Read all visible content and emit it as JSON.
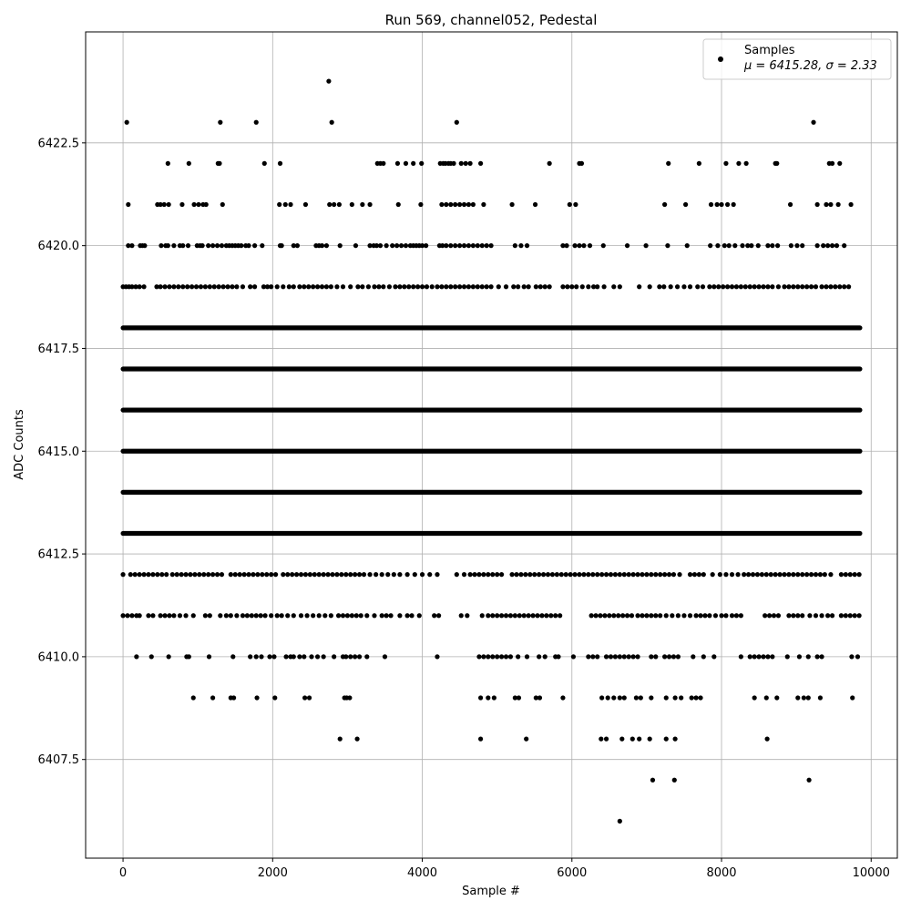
{
  "chart_data": {
    "type": "scatter",
    "title": "Run 569, channel052, Pedestal",
    "xlabel": "Sample #",
    "ylabel": "ADC Counts",
    "xlim": [
      -500,
      10350
    ],
    "ylim": [
      6405.1,
      6425.2
    ],
    "x_ticks": [
      0,
      2000,
      4000,
      6000,
      8000,
      10000
    ],
    "y_ticks": [
      6407.5,
      6410.0,
      6412.5,
      6415.0,
      6417.5,
      6420.0,
      6422.5
    ],
    "x_tick_labels": [
      "0",
      "2000",
      "4000",
      "6000",
      "8000",
      "10000"
    ],
    "y_tick_labels": [
      "6407.5",
      "6410.0",
      "6412.5",
      "6415.0",
      "6417.5",
      "6420.0",
      "6422.5"
    ],
    "grid": true,
    "legend": {
      "location": "upper right",
      "entries": [
        {
          "label": "Samples",
          "stats": "μ = 6415.28, σ = 2.33",
          "marker": "circle",
          "color": "#000000"
        }
      ]
    },
    "n_samples": 9850,
    "series": [
      {
        "name": "Samples",
        "color": "#000000",
        "marker": "circle",
        "dense_levels": [
          {
            "y": 6413,
            "x_range": [
              0,
              9850
            ]
          },
          {
            "y": 6414,
            "x_range": [
              0,
              9850
            ]
          },
          {
            "y": 6415,
            "x_range": [
              0,
              9850
            ]
          },
          {
            "y": 6416,
            "x_range": [
              0,
              9850
            ]
          },
          {
            "y": 6417,
            "x_range": [
              0,
              9850
            ]
          },
          {
            "y": 6418,
            "x_range": [
              0,
              9850
            ]
          }
        ],
        "sparse_points": [
          {
            "y": 6424,
            "x": [
              2750
            ]
          },
          {
            "y": 6423,
            "x": [
              50,
              1300,
              1780,
              2790,
              4460,
              9230
            ]
          },
          {
            "y": 6422,
            "x": [
              600,
              880,
              1270,
              1290,
              1890,
              2100,
              3400,
              3440,
              3480,
              3670,
              3780,
              3880,
              3990,
              4240,
              4280,
              4310,
              4350,
              4380,
              4420,
              4520,
              4580,
              4640,
              4780,
              5700,
              6100,
              6130,
              7290,
              7700,
              8060,
              8230,
              8330,
              8720,
              8740,
              9440,
              9480,
              9580
            ]
          },
          {
            "y": 6421,
            "x": [
              70,
              460,
              500,
              550,
              610,
              790,
              950,
              1010,
              1070,
              1110,
              1330,
              2090,
              2170,
              2240,
              2440,
              2760,
              2820,
              2890,
              3060,
              3200,
              3300,
              3680,
              3980,
              4260,
              4320,
              4380,
              4440,
              4500,
              4560,
              4620,
              4680,
              4820,
              5200,
              5510,
              5970,
              6050,
              7240,
              7520,
              7860,
              7940,
              8000,
              8080,
              8160,
              8920,
              9280,
              9400,
              9460,
              9560,
              9730
            ]
          },
          {
            "y": 6420,
            "x": [
              70,
              120,
              230,
              260,
              290,
              510,
              570,
              600,
              680,
              760,
              800,
              870,
              990,
              1030,
              1060,
              1140,
              1200,
              1260,
              1320,
              1380,
              1420,
              1460,
              1500,
              1540,
              1580,
              1640,
              1680,
              1760,
              1860,
              2100,
              2120,
              2280,
              2330,
              2580,
              2620,
              2660,
              2720,
              2900,
              3110,
              3300,
              3350,
              3390,
              3440,
              3520,
              3600,
              3660,
              3720,
              3780,
              3840,
              3880,
              3920,
              3960,
              4000,
              4050,
              4230,
              4270,
              4320,
              4380,
              4440,
              4500,
              4560,
              4620,
              4680,
              4740,
              4800,
              4860,
              4920,
              5240,
              5320,
              5400,
              5880,
              5930,
              6040,
              6100,
              6160,
              6240,
              6420,
              6740,
              6990,
              7280,
              7540,
              7850,
              7950,
              8040,
              8100,
              8180,
              8280,
              8350,
              8400,
              8490,
              8620,
              8680,
              8750,
              8930,
              9010,
              9080,
              9280,
              9360,
              9420,
              9480,
              9540,
              9640
            ]
          },
          {
            "y": 6419,
            "x": [
              0,
              40,
              80,
              120,
              170,
              220,
              280,
              450,
              500,
              560,
              620,
              680,
              740,
              800,
              860,
              920,
              980,
              1040,
              1100,
              1160,
              1220,
              1280,
              1340,
              1400,
              1460,
              1520,
              1600,
              1700,
              1760,
              1880,
              1930,
              1980,
              2060,
              2140,
              2220,
              2280,
              2360,
              2420,
              2480,
              2540,
              2600,
              2660,
              2720,
              2780,
              2860,
              2940,
              3040,
              3140,
              3200,
              3280,
              3360,
              3420,
              3480,
              3560,
              3640,
              3700,
              3760,
              3820,
              3880,
              3940,
              4000,
              4060,
              4130,
              4200,
              4260,
              4320,
              4380,
              4440,
              4500,
              4560,
              4620,
              4680,
              4740,
              4800,
              4860,
              4920,
              5020,
              5120,
              5220,
              5280,
              5360,
              5420,
              5520,
              5580,
              5640,
              5700,
              5880,
              5940,
              6000,
              6060,
              6140,
              6220,
              6290,
              6340,
              6430,
              6560,
              6640,
              6900,
              7040,
              7170,
              7230,
              7320,
              7410,
              7500,
              7580,
              7680,
              7750,
              7840,
              7900,
              7960,
              8020,
              8080,
              8140,
              8200,
              8260,
              8320,
              8380,
              8440,
              8500,
              8560,
              8620,
              8680,
              8760,
              8840,
              8900,
              8960,
              9020,
              9080,
              9140,
              9200,
              9260,
              9340,
              9400,
              9460,
              9520,
              9580,
              9640,
              9700
            ]
          },
          {
            "y": 6412,
            "x": [
              0,
              100,
              160,
              220,
              280,
              340,
              400,
              460,
              520,
              580,
              660,
              720,
              780,
              840,
              900,
              960,
              1020,
              1080,
              1140,
              1200,
              1260,
              1320,
              1440,
              1500,
              1560,
              1620,
              1680,
              1740,
              1800,
              1860,
              1920,
              1980,
              2040,
              2140,
              2200,
              2260,
              2320,
              2380,
              2440,
              2500,
              2560,
              2620,
              2680,
              2740,
              2800,
              2860,
              2920,
              2980,
              3040,
              3100,
              3160,
              3220,
              3300,
              3380,
              3460,
              3540,
              3620,
              3700,
              3800,
              3900,
              4000,
              4100,
              4200,
              4460,
              4560,
              4640,
              4700,
              4760,
              4820,
              4880,
              4940,
              5000,
              5060,
              5200,
              5260,
              5320,
              5380,
              5440,
              5500,
              5560,
              5620,
              5680,
              5740,
              5800,
              5860,
              5920,
              5980,
              6040,
              6100,
              6160,
              6220,
              6280,
              6340,
              6400,
              6460,
              6520,
              6580,
              6640,
              6700,
              6760,
              6820,
              6880,
              6940,
              7000,
              7060,
              7120,
              7180,
              7240,
              7300,
              7360,
              7440,
              7580,
              7640,
              7700,
              7760,
              7880,
              7980,
              8060,
              8140,
              8220,
              8300,
              8360,
              8420,
              8480,
              8540,
              8600,
              8660,
              8720,
              8780,
              8840,
              8900,
              8960,
              9020,
              9080,
              9140,
              9200,
              9260,
              9320,
              9380,
              9460,
              9600,
              9660,
              9720,
              9780,
              9840
            ]
          },
          {
            "y": 6411,
            "x": [
              0,
              60,
              120,
              180,
              220,
              340,
              400,
              500,
              560,
              620,
              680,
              760,
              840,
              940,
              1100,
              1160,
              1300,
              1380,
              1440,
              1520,
              1600,
              1660,
              1720,
              1780,
              1840,
              1900,
              1980,
              2060,
              2120,
              2200,
              2280,
              2380,
              2460,
              2540,
              2620,
              2700,
              2780,
              2880,
              2940,
              3000,
              3060,
              3120,
              3180,
              3260,
              3360,
              3460,
              3520,
              3580,
              3700,
              3800,
              3860,
              3960,
              4160,
              4220,
              4520,
              4600,
              4800,
              4880,
              4940,
              5000,
              5060,
              5120,
              5180,
              5240,
              5300,
              5360,
              5420,
              5480,
              5540,
              5600,
              5660,
              5720,
              5780,
              5840,
              6260,
              6320,
              6380,
              6440,
              6500,
              6560,
              6620,
              6680,
              6740,
              6800,
              6880,
              6940,
              7000,
              7060,
              7120,
              7180,
              7260,
              7340,
              7420,
              7500,
              7580,
              7660,
              7720,
              7780,
              7840,
              7920,
              8000,
              8060,
              8140,
              8200,
              8260,
              8580,
              8640,
              8700,
              8760,
              8900,
              8960,
              9020,
              9080,
              9180,
              9260,
              9340,
              9420,
              9480,
              9600,
              9660,
              9720,
              9780,
              9840
            ]
          },
          {
            "y": 6410,
            "x": [
              180,
              380,
              610,
              850,
              880,
              1150,
              1470,
              1700,
              1780,
              1850,
              1960,
              2020,
              2180,
              2240,
              2280,
              2360,
              2420,
              2520,
              2600,
              2680,
              2820,
              2940,
              2980,
              3040,
              3100,
              3160,
              3260,
              3500,
              4200,
              4760,
              4820,
              4880,
              4940,
              5000,
              5060,
              5120,
              5180,
              5280,
              5400,
              5560,
              5640,
              5780,
              5820,
              6020,
              6220,
              6280,
              6340,
              6460,
              6520,
              6580,
              6640,
              6700,
              6760,
              6820,
              6880,
              7060,
              7120,
              7240,
              7300,
              7360,
              7420,
              7620,
              7760,
              7900,
              8260,
              8380,
              8440,
              8500,
              8560,
              8620,
              8680,
              8880,
              9040,
              9160,
              9280,
              9340,
              9740,
              9820
            ]
          },
          {
            "y": 6409,
            "x": [
              940,
              1200,
              1440,
              1480,
              1790,
              2030,
              2430,
              2490,
              2960,
              2990,
              3030,
              4780,
              4880,
              4960,
              5240,
              5290,
              5520,
              5570,
              5880,
              6400,
              6480,
              6560,
              6640,
              6700,
              6860,
              6920,
              7060,
              7260,
              7380,
              7460,
              7600,
              7660,
              7720,
              8440,
              8600,
              8740,
              9020,
              9100,
              9160,
              9320,
              9750
            ]
          },
          {
            "y": 6408,
            "x": [
              2900,
              3130,
              4780,
              5390,
              6390,
              6460,
              6670,
              6810,
              6900,
              7040,
              7260,
              7380,
              8610
            ]
          },
          {
            "y": 6407,
            "x": [
              7080,
              7370,
              9170
            ]
          },
          {
            "y": 6406,
            "x": [
              6640
            ]
          }
        ]
      }
    ]
  }
}
